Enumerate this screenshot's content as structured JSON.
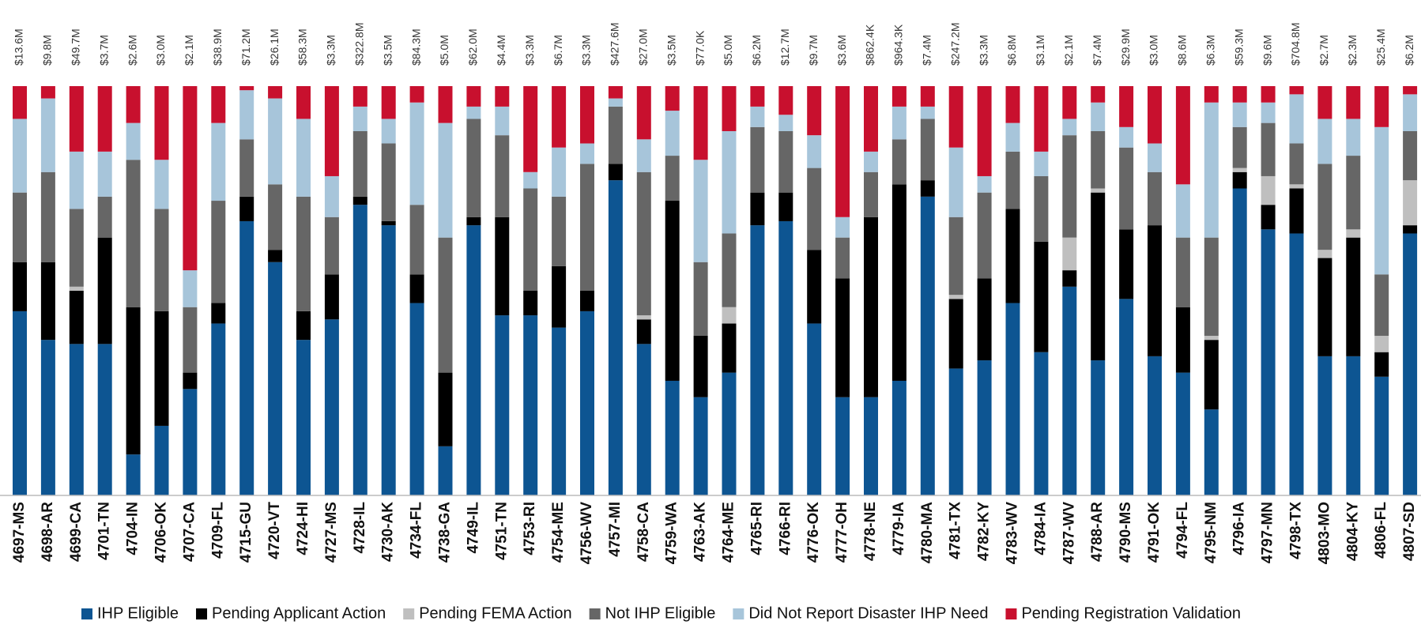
{
  "chart_data": {
    "type": "stacked_bar_percent",
    "categories": [
      "4697-MS",
      "4698-AR",
      "4699-CA",
      "4701-TN",
      "4704-IN",
      "4706-OK",
      "4707-CA",
      "4709-FL",
      "4715-GU",
      "4720-VT",
      "4724-HI",
      "4727-MS",
      "4728-IL",
      "4730-AK",
      "4734-FL",
      "4738-GA",
      "4749-IL",
      "4751-TN",
      "4753-RI",
      "4754-ME",
      "4756-WV",
      "4757-MI",
      "4758-CA",
      "4759-WA",
      "4763-AK",
      "4764-ME",
      "4765-RI",
      "4766-RI",
      "4776-OK",
      "4777-OH",
      "4778-NE",
      "4779-IA",
      "4780-MA",
      "4781-TX",
      "4782-KY",
      "4783-WV",
      "4784-IA",
      "4787-WV",
      "4788-AR",
      "4790-MS",
      "4791-OK",
      "4794-FL",
      "4795-NM",
      "4796-IA",
      "4797-MN",
      "4798-TX",
      "4803-MO",
      "4804-KY",
      "4806-FL",
      "4807-SD"
    ],
    "totals": [
      13600000,
      9800000,
      49700000,
      3700000,
      2600000,
      3000000,
      2100000,
      38900000,
      71200000,
      26100000,
      58300000,
      3300000,
      322800000,
      3500000,
      84300000,
      5000000,
      62000000,
      4400000,
      3300000,
      6700000,
      3300000,
      427600000,
      27000000,
      3500000,
      77000,
      5000000,
      6200000,
      12700000,
      9700000,
      3600000,
      862400,
      964300,
      7400000,
      247200000,
      3300000,
      6800000,
      3100000,
      2100000,
      7400000,
      29900000,
      3000000,
      8600000,
      6300000,
      59300000,
      9600000,
      704800000,
      2700000,
      2300000,
      25400000,
      6200000
    ],
    "total_labels": [
      "$13.6M",
      "$9.8M",
      "$49.7M",
      "$3.7M",
      "$2.6M",
      "$3.0M",
      "$2.1M",
      "$38.9M",
      "$71.2M",
      "$26.1M",
      "$58.3M",
      "$3.3M",
      "$322.8M",
      "$3.5M",
      "$84.3M",
      "$5.0M",
      "$62.0M",
      "$4.4M",
      "$3.3M",
      "$6.7M",
      "$3.3M",
      "$427.6M",
      "$27.0M",
      "$3.5M",
      "$77.0K",
      "$5.0M",
      "$6.2M",
      "$12.7M",
      "$9.7M",
      "$3.6M",
      "$862.4K",
      "$964.3K",
      "$7.4M",
      "$247.2M",
      "$3.3M",
      "$6.8M",
      "$3.1M",
      "$2.1M",
      "$7.4M",
      "$29.9M",
      "$3.0M",
      "$8.6M",
      "$6.3M",
      "$59.3M",
      "$9.6M",
      "$704.8M",
      "$2.7M",
      "$2.3M",
      "$25.4M",
      "$6.2M"
    ],
    "ylim": [
      0,
      100
    ],
    "series": [
      {
        "name": "IHP Eligible",
        "color": "#0d5592",
        "values": [
          45,
          38,
          37,
          37,
          10,
          17,
          26,
          42,
          67,
          57,
          38,
          43,
          71,
          66,
          47,
          12,
          66,
          44,
          44,
          41,
          45,
          77,
          37,
          28,
          24,
          30,
          66,
          67,
          42,
          24,
          24,
          28,
          73,
          31,
          33,
          47,
          35,
          51,
          33,
          48,
          34,
          30,
          21,
          75,
          65,
          64,
          34,
          34,
          29,
          64
        ]
      },
      {
        "name": "Pending Applicant Action",
        "color": "#000000",
        "values": [
          12,
          19,
          13,
          26,
          36,
          28,
          4,
          5,
          6,
          3,
          7,
          11,
          2,
          1,
          7,
          18,
          2,
          24,
          6,
          15,
          5,
          4,
          6,
          44,
          15,
          12,
          8,
          7,
          18,
          29,
          44,
          48,
          4,
          17,
          20,
          23,
          27,
          4,
          41,
          17,
          32,
          16,
          17,
          4,
          6,
          11,
          24,
          29,
          6,
          2
        ]
      },
      {
        "name": "Pending FEMA Action",
        "color": "#bfbfbf",
        "values": [
          0,
          0,
          1,
          0,
          0,
          0,
          0,
          0,
          0,
          0,
          0,
          0,
          0,
          0,
          0,
          0,
          0,
          0,
          0,
          0,
          0,
          0,
          1,
          0,
          0,
          4,
          0,
          0,
          0,
          0,
          0,
          0,
          0,
          1,
          0,
          0,
          0,
          8,
          1,
          0,
          0,
          0,
          1,
          1,
          7,
          1,
          2,
          2,
          4,
          11
        ]
      },
      {
        "name": "Not IHP Eligible",
        "color": "#666666",
        "values": [
          17,
          22,
          19,
          10,
          36,
          25,
          16,
          25,
          14,
          16,
          28,
          14,
          16,
          19,
          17,
          33,
          24,
          20,
          25,
          17,
          31,
          14,
          35,
          11,
          18,
          18,
          16,
          15,
          20,
          10,
          11,
          11,
          15,
          19,
          21,
          14,
          16,
          25,
          14,
          20,
          13,
          17,
          24,
          10,
          13,
          10,
          21,
          18,
          15,
          12
        ]
      },
      {
        "name": "Did Not Report Disaster IHP Need",
        "color": "#a7c5da",
        "values": [
          18,
          18,
          14,
          11,
          9,
          12,
          9,
          19,
          12,
          21,
          19,
          10,
          6,
          6,
          25,
          28,
          3,
          7,
          4,
          12,
          5,
          2,
          8,
          11,
          25,
          25,
          5,
          4,
          8,
          5,
          5,
          8,
          3,
          17,
          4,
          7,
          6,
          4,
          7,
          5,
          7,
          13,
          33,
          6,
          5,
          12,
          11,
          9,
          36,
          9
        ]
      },
      {
        "name": "Pending Registration Validation",
        "color": "#c8102e",
        "values": [
          8,
          3,
          16,
          16,
          9,
          18,
          45,
          9,
          1,
          3,
          8,
          22,
          5,
          8,
          4,
          9,
          5,
          5,
          21,
          15,
          14,
          3,
          13,
          6,
          18,
          11,
          5,
          7,
          12,
          32,
          16,
          5,
          5,
          15,
          22,
          9,
          16,
          8,
          4,
          10,
          14,
          24,
          4,
          4,
          4,
          2,
          8,
          8,
          10,
          2
        ]
      }
    ]
  }
}
